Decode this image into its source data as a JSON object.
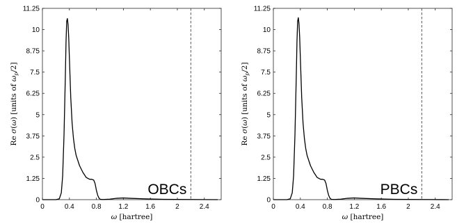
{
  "chart_data": [
    {
      "type": "line",
      "panel_label": "OBCs",
      "xlabel": "ω [hartree]",
      "ylabel": "Re σ(ω) [units of ω_p/2]",
      "xlim": [
        0,
        2.65
      ],
      "ylim": [
        0,
        11.25
      ],
      "xticks": [
        "0",
        "0.4",
        "0.8",
        "1.2",
        "1.6",
        "2",
        "2.4"
      ],
      "yticks": [
        "0",
        "1.25",
        "2.5",
        "3.75",
        "5",
        "6.25",
        "7.5",
        "8.75",
        "10",
        "11.25"
      ],
      "vertical_dashed_line_x": 2.2,
      "series": [
        {
          "x": [
            0,
            0.2,
            0.25,
            0.28,
            0.3,
            0.32,
            0.34,
            0.35,
            0.36,
            0.37,
            0.38,
            0.39,
            0.4,
            0.42,
            0.44,
            0.46,
            0.48,
            0.5,
            0.55,
            0.6,
            0.65,
            0.7,
            0.73,
            0.76,
            0.78,
            0.8,
            0.82,
            0.84,
            0.86,
            0.9,
            1.0,
            1.1,
            1.2,
            1.3,
            1.5,
            1.8,
            2.2,
            2.6
          ],
          "values": [
            0,
            0,
            0.05,
            0.4,
            1.4,
            3.8,
            7.3,
            9.3,
            10.5,
            10.65,
            10.3,
            9.5,
            8.3,
            6.0,
            4.5,
            3.6,
            3.0,
            2.6,
            2.0,
            1.6,
            1.3,
            1.2,
            1.2,
            1.15,
            0.95,
            0.55,
            0.25,
            0.08,
            0.02,
            0.01,
            0.03,
            0.08,
            0.1,
            0.08,
            0.05,
            0.02,
            0.01,
            0
          ]
        }
      ]
    },
    {
      "type": "line",
      "panel_label": "PBCs",
      "xlabel": "ω [hartree]",
      "ylabel": "Re σ(ω) [units of ω_p/2]",
      "xlim": [
        0,
        2.65
      ],
      "ylim": [
        0,
        11.25
      ],
      "xticks": [
        "0",
        "0.4",
        "0.8",
        "1.2",
        "1.6",
        "2",
        "2.4"
      ],
      "yticks": [
        "0",
        "1.25",
        "2.5",
        "3.75",
        "5",
        "6.25",
        "7.5",
        "8.75",
        "10",
        "11.25"
      ],
      "vertical_dashed_line_x": 2.2,
      "series": [
        {
          "x": [
            0,
            0.2,
            0.25,
            0.28,
            0.3,
            0.32,
            0.34,
            0.35,
            0.36,
            0.37,
            0.38,
            0.39,
            0.4,
            0.42,
            0.44,
            0.46,
            0.48,
            0.5,
            0.55,
            0.6,
            0.65,
            0.7,
            0.73,
            0.76,
            0.78,
            0.8,
            0.82,
            0.84,
            0.86,
            0.9,
            1.0,
            1.1,
            1.2,
            1.3,
            1.5,
            1.8,
            2.2,
            2.6
          ],
          "values": [
            0,
            0,
            0.05,
            0.4,
            1.4,
            3.8,
            7.3,
            9.3,
            10.5,
            10.7,
            10.35,
            9.55,
            8.35,
            6.0,
            4.5,
            3.6,
            3.0,
            2.6,
            2.0,
            1.6,
            1.3,
            1.2,
            1.2,
            1.15,
            0.95,
            0.55,
            0.25,
            0.08,
            0.02,
            0.01,
            0.03,
            0.08,
            0.1,
            0.08,
            0.05,
            0.02,
            0.01,
            0
          ]
        }
      ]
    }
  ]
}
